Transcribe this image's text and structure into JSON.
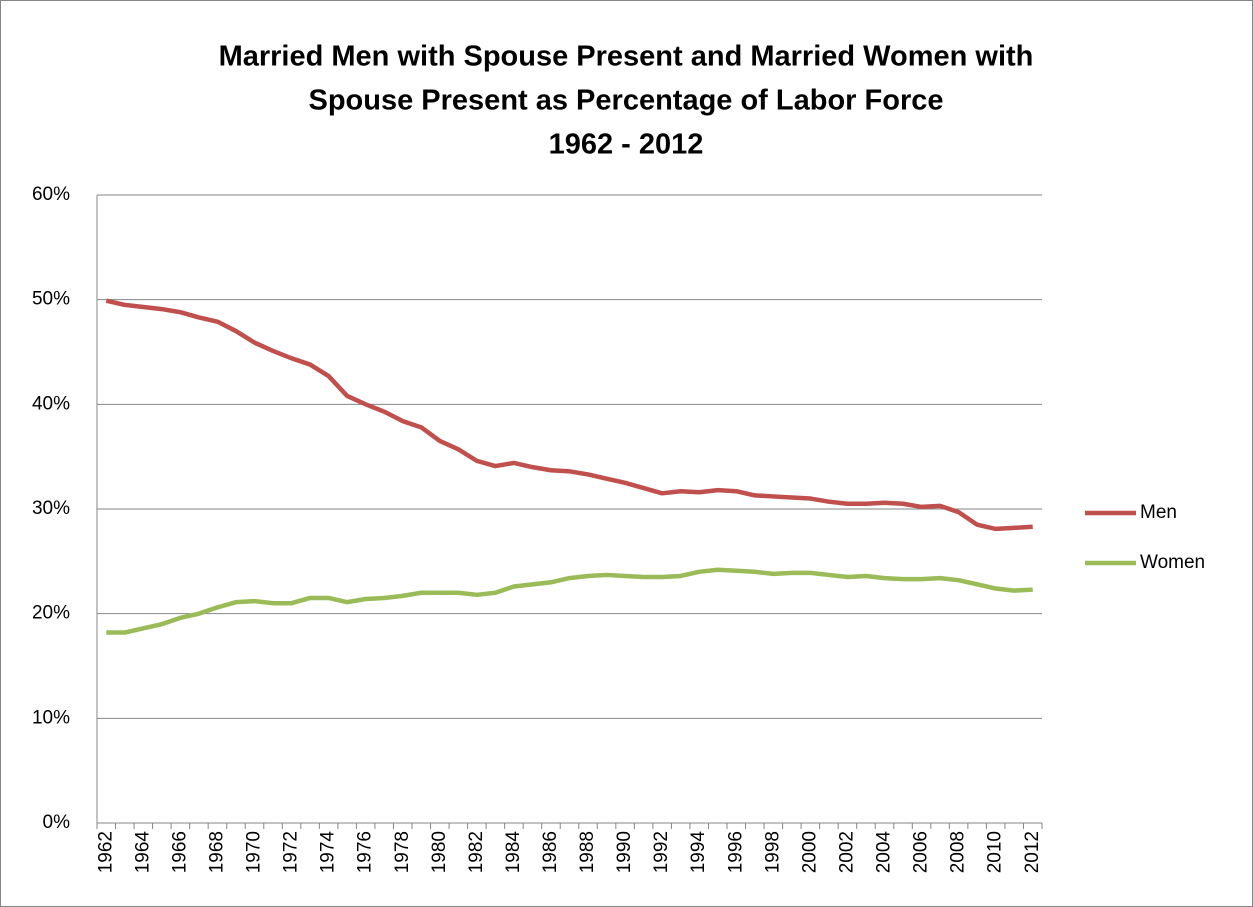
{
  "chart_data": {
    "type": "line",
    "title": [
      "Married Men with Spouse Present and Married Women with",
      "Spouse Present as Percentage of Labor Force",
      "1962 - 2012"
    ],
    "categories": [
      "1962",
      null,
      "1964",
      null,
      "1966",
      null,
      "1968",
      null,
      "1970",
      null,
      "1972",
      null,
      "1974",
      null,
      "1976",
      null,
      "1978",
      null,
      "1980",
      null,
      "1982",
      null,
      "1984",
      null,
      "1986",
      null,
      "1988",
      null,
      "1990",
      null,
      "1992",
      null,
      "1994",
      null,
      "1996",
      null,
      "1998",
      null,
      "2000",
      null,
      "2002",
      null,
      "2004",
      null,
      "2006",
      null,
      "2008",
      null,
      "2010",
      null,
      "2012"
    ],
    "series": [
      {
        "name": "Men",
        "color": "#c0504d",
        "values": [
          49.9,
          49.5,
          49.3,
          49.1,
          48.8,
          48.3,
          47.9,
          47.0,
          45.9,
          45.1,
          44.4,
          43.8,
          42.7,
          40.8,
          40.0,
          39.3,
          38.4,
          37.8,
          36.5,
          35.7,
          34.6,
          34.1,
          34.4,
          34.0,
          33.7,
          33.6,
          33.3,
          32.9,
          32.5,
          32.0,
          31.5,
          31.7,
          31.6,
          31.8,
          31.7,
          31.3,
          31.2,
          31.1,
          31.0,
          30.7,
          30.5,
          30.5,
          30.6,
          30.5,
          30.2,
          30.3,
          29.7,
          28.5,
          28.1,
          28.2,
          28.3
        ]
      },
      {
        "name": "Women",
        "color": "#9bbb59",
        "values": [
          18.2,
          18.2,
          18.6,
          19.0,
          19.6,
          20.0,
          20.6,
          21.1,
          21.2,
          21.0,
          21.0,
          21.5,
          21.5,
          21.1,
          21.4,
          21.5,
          21.7,
          22.0,
          22.0,
          22.0,
          21.8,
          22.0,
          22.6,
          22.8,
          23.0,
          23.4,
          23.6,
          23.7,
          23.6,
          23.5,
          23.5,
          23.6,
          24.0,
          24.2,
          24.1,
          24.0,
          23.8,
          23.9,
          23.9,
          23.7,
          23.5,
          23.6,
          23.4,
          23.3,
          23.3,
          23.4,
          23.2,
          22.8,
          22.4,
          22.2,
          22.3
        ]
      }
    ],
    "ylim": [
      0,
      60
    ],
    "yticks": [
      {
        "value": 0,
        "label": "0%"
      },
      {
        "value": 10,
        "label": "10%"
      },
      {
        "value": 20,
        "label": "20%"
      },
      {
        "value": 30,
        "label": "30%"
      },
      {
        "value": 40,
        "label": "40%"
      },
      {
        "value": 50,
        "label": "50%"
      },
      {
        "value": 60,
        "label": "60%"
      }
    ],
    "grid": true,
    "legend": "right"
  }
}
